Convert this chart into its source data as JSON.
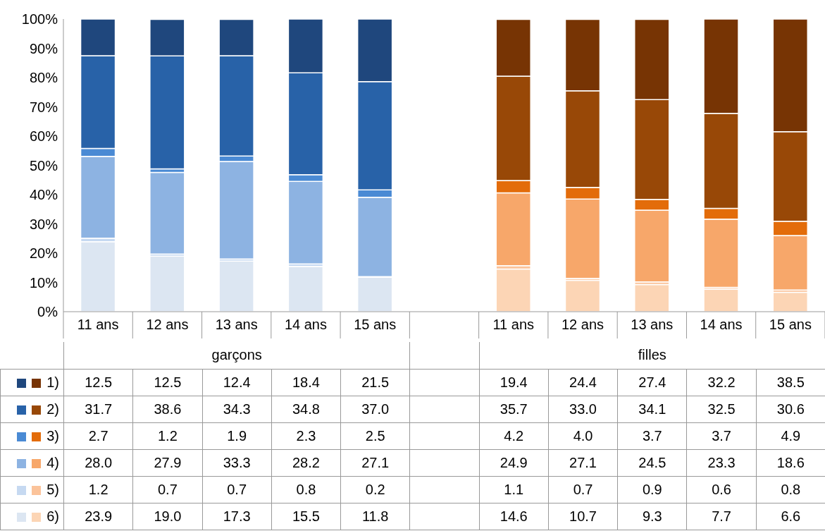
{
  "chart_data": {
    "type": "bar",
    "stacked": true,
    "categories": [
      "11 ans",
      "12 ans",
      "13 ans",
      "14 ans",
      "15 ans",
      null,
      "11 ans",
      "12 ans",
      "13 ans",
      "14 ans",
      "15 ans"
    ],
    "annotations": [
      "garçons",
      "filles"
    ],
    "ylim": [
      0,
      100
    ],
    "yticks": [
      {
        "value": 0,
        "label": "0%"
      },
      {
        "value": 10,
        "label": "10%"
      },
      {
        "value": 20,
        "label": "20%"
      },
      {
        "value": 30,
        "label": "30%"
      },
      {
        "value": 40,
        "label": "40%"
      },
      {
        "value": 50,
        "label": "50%"
      },
      {
        "value": 60,
        "label": "60%"
      },
      {
        "value": 70,
        "label": "70%"
      },
      {
        "value": 80,
        "label": "80%"
      },
      {
        "value": 90,
        "label": "90%"
      },
      {
        "value": 100,
        "label": "100%"
      }
    ],
    "legend": "bottom left",
    "series": [
      {
        "name": "6)",
        "values": [
          23.9,
          19.0,
          17.3,
          15.5,
          11.8,
          null,
          14.6,
          10.7,
          9.3,
          7.7,
          6.6
        ],
        "value_labels": [
          "23.9",
          "19.0",
          "17.3",
          "15.5",
          "11.8",
          null,
          "14.6",
          "10.7",
          "9.3",
          "7.7",
          "6.6"
        ],
        "colors": [
          "#dce6f2",
          "#dce6f2",
          "#dce6f2",
          "#dce6f2",
          "#dce6f2",
          null,
          "#fcd5b5",
          "#fcd5b5",
          "#fcd5b5",
          "#fcd5b5",
          "#fcd5b5"
        ]
      },
      {
        "name": "5)",
        "values": [
          1.2,
          0.7,
          0.7,
          0.8,
          0.2,
          null,
          1.1,
          0.7,
          0.9,
          0.6,
          0.8
        ],
        "value_labels": [
          "1.2",
          "0.7",
          "0.7",
          "0.8",
          "0.2",
          null,
          "1.1",
          "0.7",
          "0.9",
          "0.6",
          "0.8"
        ],
        "colors": [
          "#c6d9f1",
          "#c6d9f1",
          "#c6d9f1",
          "#c6d9f1",
          "#c6d9f1",
          null,
          "#fbc39a",
          "#fbc39a",
          "#fbc39a",
          "#fbc39a",
          "#fbc39a"
        ]
      },
      {
        "name": "4)",
        "values": [
          28.0,
          27.9,
          33.3,
          28.2,
          27.1,
          null,
          24.9,
          27.1,
          24.5,
          23.3,
          18.6
        ],
        "value_labels": [
          "28.0",
          "27.9",
          "33.3",
          "28.2",
          "27.1",
          null,
          "24.9",
          "27.1",
          "24.5",
          "23.3",
          "18.6"
        ],
        "colors": [
          "#8db3e2",
          "#8db3e2",
          "#8db3e2",
          "#8db3e2",
          "#8db3e2",
          null,
          "#f7a76a",
          "#f7a76a",
          "#f7a76a",
          "#f7a76a",
          "#f7a76a"
        ]
      },
      {
        "name": "3)",
        "values": [
          2.7,
          1.2,
          1.9,
          2.3,
          2.5,
          null,
          4.2,
          4.0,
          3.7,
          3.7,
          4.9
        ],
        "value_labels": [
          "2.7",
          "1.2",
          "1.9",
          "2.3",
          "2.5",
          null,
          "4.2",
          "4.0",
          "3.7",
          "3.7",
          "4.9"
        ],
        "colors": [
          "#4a8ad4",
          "#4a8ad4",
          "#4a8ad4",
          "#4a8ad4",
          "#4a8ad4",
          null,
          "#e36c0a",
          "#e36c0a",
          "#e36c0a",
          "#e36c0a",
          "#e36c0a"
        ]
      },
      {
        "name": "2)",
        "values": [
          31.7,
          38.6,
          34.3,
          34.8,
          37.0,
          null,
          35.7,
          33.0,
          34.1,
          32.5,
          30.6
        ],
        "value_labels": [
          "31.7",
          "38.6",
          "34.3",
          "34.8",
          "37.0",
          null,
          "35.7",
          "33.0",
          "34.1",
          "32.5",
          "30.6"
        ],
        "colors": [
          "#2862a8",
          "#2862a8",
          "#2862a8",
          "#2862a8",
          "#2862a8",
          null,
          "#984807",
          "#984807",
          "#984807",
          "#984807",
          "#984807"
        ]
      },
      {
        "name": "1)",
        "values": [
          12.5,
          12.5,
          12.4,
          18.4,
          21.5,
          null,
          19.4,
          24.4,
          27.4,
          32.2,
          38.5
        ],
        "value_labels": [
          "12.5",
          "12.5",
          "12.4",
          "18.4",
          "21.5",
          null,
          "19.4",
          "24.4",
          "27.4",
          "32.2",
          "38.5"
        ],
        "colors": [
          "#1f477d",
          "#1f477d",
          "#1f477d",
          "#1f477d",
          "#1f477d",
          null,
          "#773404",
          "#773404",
          "#773404",
          "#773404",
          "#773404"
        ]
      }
    ]
  }
}
